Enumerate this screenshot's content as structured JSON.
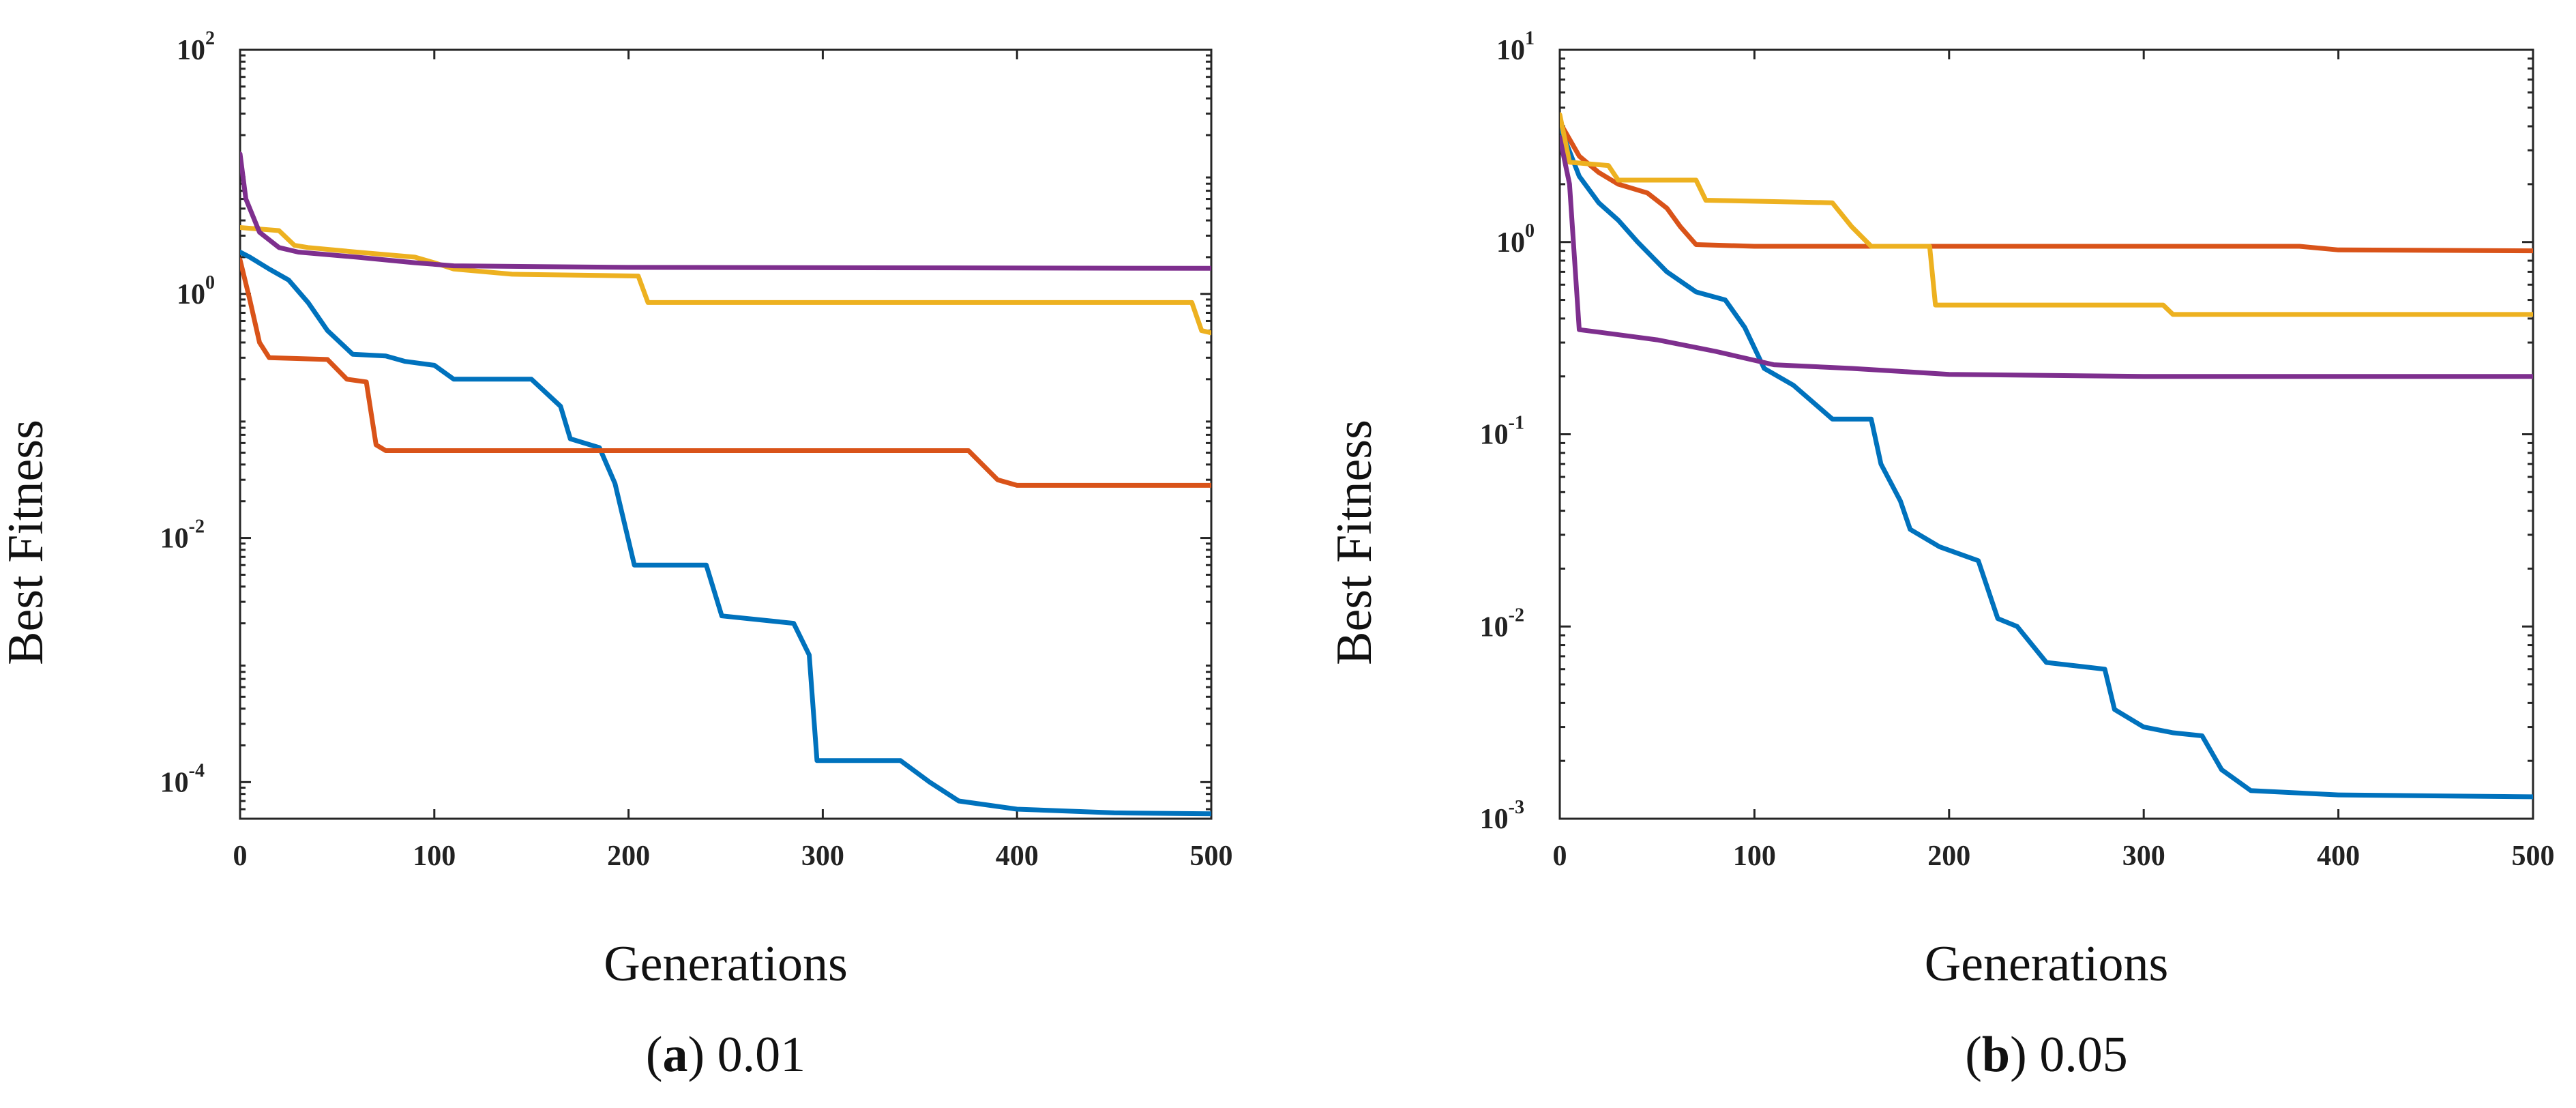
{
  "chart_data": [
    {
      "type": "line",
      "panel": "a",
      "caption_letter": "a",
      "caption_value": "0.01",
      "xlabel": "Generations",
      "ylabel": "Best Fitness",
      "yscale": "log",
      "xlim": [
        0,
        500
      ],
      "ylim_exp": [
        -4.3,
        2
      ],
      "xticks": [
        0,
        100,
        200,
        300,
        400,
        500
      ],
      "yticks": [
        {
          "base": "10",
          "exp": "2",
          "value": 100
        },
        {
          "base": "10",
          "exp": "0",
          "value": 1
        },
        {
          "base": "10",
          "exp": "-2",
          "value": 0.01
        },
        {
          "base": "10",
          "exp": "-4",
          "value": 0.0001
        }
      ],
      "series": [
        {
          "name": "blue",
          "color": "#0072BD",
          "points": [
            [
              0,
              2.2
            ],
            [
              5,
              2.0
            ],
            [
              15,
              1.6
            ],
            [
              25,
              1.3
            ],
            [
              35,
              0.85
            ],
            [
              45,
              0.5
            ],
            [
              58,
              0.32
            ],
            [
              75,
              0.31
            ],
            [
              85,
              0.28
            ],
            [
              100,
              0.26
            ],
            [
              110,
              0.2
            ],
            [
              150,
              0.2
            ],
            [
              165,
              0.12
            ],
            [
              170,
              0.065
            ],
            [
              185,
              0.055
            ],
            [
              193,
              0.028
            ],
            [
              203,
              0.006
            ],
            [
              240,
              0.006
            ],
            [
              248,
              0.0023
            ],
            [
              285,
              0.002
            ],
            [
              293,
              0.0011
            ],
            [
              297,
              0.00015
            ],
            [
              340,
              0.00015
            ],
            [
              355,
              0.0001
            ],
            [
              370,
              7e-05
            ],
            [
              400,
              6e-05
            ],
            [
              450,
              5.6e-05
            ],
            [
              500,
              5.5e-05
            ]
          ]
        },
        {
          "name": "orange",
          "color": "#D95319",
          "points": [
            [
              0,
              1.9
            ],
            [
              5,
              0.9
            ],
            [
              10,
              0.4
            ],
            [
              15,
              0.3
            ],
            [
              45,
              0.29
            ],
            [
              55,
              0.2
            ],
            [
              65,
              0.19
            ],
            [
              70,
              0.058
            ],
            [
              75,
              0.052
            ],
            [
              375,
              0.052
            ],
            [
              390,
              0.03
            ],
            [
              400,
              0.027
            ],
            [
              500,
              0.027
            ]
          ]
        },
        {
          "name": "yellow",
          "color": "#EDB120",
          "points": [
            [
              0,
              3.5
            ],
            [
              10,
              3.4
            ],
            [
              20,
              3.3
            ],
            [
              28,
              2.5
            ],
            [
              35,
              2.4
            ],
            [
              60,
              2.2
            ],
            [
              90,
              2.0
            ],
            [
              100,
              1.8
            ],
            [
              110,
              1.6
            ],
            [
              140,
              1.45
            ],
            [
              205,
              1.4
            ],
            [
              210,
              0.85
            ],
            [
              490,
              0.85
            ],
            [
              495,
              0.5
            ],
            [
              500,
              0.48
            ]
          ]
        },
        {
          "name": "purple",
          "color": "#7E2F8E",
          "points": [
            [
              0,
              14
            ],
            [
              3,
              6.0
            ],
            [
              10,
              3.2
            ],
            [
              20,
              2.4
            ],
            [
              30,
              2.2
            ],
            [
              60,
              2.0
            ],
            [
              90,
              1.8
            ],
            [
              110,
              1.7
            ],
            [
              200,
              1.65
            ],
            [
              500,
              1.62
            ]
          ]
        }
      ]
    },
    {
      "type": "line",
      "panel": "b",
      "caption_letter": "b",
      "caption_value": "0.05",
      "xlabel": "Generations",
      "ylabel": "Best Fitness",
      "yscale": "log",
      "xlim": [
        0,
        500
      ],
      "ylim_exp": [
        -3,
        1
      ],
      "xticks": [
        0,
        100,
        200,
        300,
        400,
        500
      ],
      "yticks": [
        {
          "base": "10",
          "exp": "1",
          "value": 10
        },
        {
          "base": "10",
          "exp": "0",
          "value": 1
        },
        {
          "base": "10",
          "exp": "-1",
          "value": 0.1
        },
        {
          "base": "10",
          "exp": "-2",
          "value": 0.01
        },
        {
          "base": "10",
          "exp": "-3",
          "value": 0.001
        }
      ],
      "series": [
        {
          "name": "blue",
          "color": "#0072BD",
          "points": [
            [
              0,
              4.0
            ],
            [
              10,
              2.2
            ],
            [
              20,
              1.6
            ],
            [
              30,
              1.3
            ],
            [
              40,
              1.0
            ],
            [
              55,
              0.7
            ],
            [
              70,
              0.55
            ],
            [
              85,
              0.5
            ],
            [
              95,
              0.36
            ],
            [
              105,
              0.22
            ],
            [
              120,
              0.18
            ],
            [
              140,
              0.12
            ],
            [
              160,
              0.12
            ],
            [
              165,
              0.07
            ],
            [
              175,
              0.045
            ],
            [
              180,
              0.032
            ],
            [
              195,
              0.026
            ],
            [
              215,
              0.022
            ],
            [
              225,
              0.011
            ],
            [
              235,
              0.01
            ],
            [
              250,
              0.0065
            ],
            [
              280,
              0.006
            ],
            [
              285,
              0.0037
            ],
            [
              300,
              0.003
            ],
            [
              315,
              0.0028
            ],
            [
              330,
              0.0027
            ],
            [
              340,
              0.0018
            ],
            [
              355,
              0.0014
            ],
            [
              400,
              0.00133
            ],
            [
              500,
              0.0013
            ]
          ]
        },
        {
          "name": "orange",
          "color": "#D95319",
          "points": [
            [
              0,
              4.2
            ],
            [
              10,
              2.8
            ],
            [
              20,
              2.3
            ],
            [
              30,
              2.0
            ],
            [
              45,
              1.8
            ],
            [
              55,
              1.5
            ],
            [
              62,
              1.2
            ],
            [
              70,
              0.97
            ],
            [
              100,
              0.95
            ],
            [
              380,
              0.95
            ],
            [
              400,
              0.91
            ],
            [
              500,
              0.9
            ]
          ]
        },
        {
          "name": "yellow",
          "color": "#EDB120",
          "points": [
            [
              0,
              4.6
            ],
            [
              5,
              2.6
            ],
            [
              25,
              2.5
            ],
            [
              30,
              2.1
            ],
            [
              70,
              2.1
            ],
            [
              75,
              1.65
            ],
            [
              140,
              1.6
            ],
            [
              150,
              1.2
            ],
            [
              160,
              0.95
            ],
            [
              190,
              0.95
            ],
            [
              193,
              0.47
            ],
            [
              310,
              0.47
            ],
            [
              315,
              0.42
            ],
            [
              500,
              0.42
            ]
          ]
        },
        {
          "name": "purple",
          "color": "#7E2F8E",
          "points": [
            [
              0,
              3.5
            ],
            [
              5,
              2.0
            ],
            [
              10,
              0.35
            ],
            [
              20,
              0.34
            ],
            [
              50,
              0.31
            ],
            [
              80,
              0.27
            ],
            [
              110,
              0.23
            ],
            [
              150,
              0.22
            ],
            [
              200,
              0.205
            ],
            [
              300,
              0.2
            ],
            [
              500,
              0.2
            ]
          ]
        }
      ]
    }
  ]
}
